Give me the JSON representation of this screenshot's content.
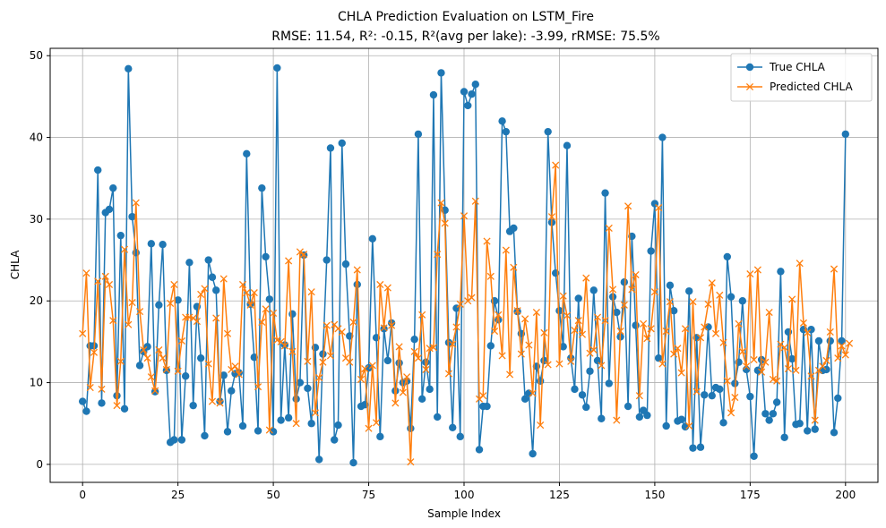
{
  "chart_data": {
    "type": "line",
    "title_line1": "CHLA Prediction Evaluation on LSTM_Fire",
    "title_line2": "RMSE: 11.54, R²: -0.15, R²(avg per lake): -3.99, rRMSE: 75.5%",
    "xlabel": "Sample Index",
    "ylabel": "CHLA",
    "xlim": [
      -8.5,
      208.5
    ],
    "ylim": [
      -2.2,
      50.9
    ],
    "xticks": [
      0,
      25,
      50,
      75,
      100,
      125,
      150,
      175,
      200
    ],
    "yticks": [
      0,
      10,
      20,
      30,
      40,
      50
    ],
    "grid": true,
    "legend_position": "top-right",
    "series": [
      {
        "name": "True CHLA",
        "color": "#1f77b4",
        "marker": "circle",
        "values": [
          7.7,
          6.5,
          14.5,
          14.5,
          36.0,
          7.5,
          30.8,
          31.2,
          33.8,
          8.4,
          28.0,
          6.8,
          48.4,
          30.3,
          25.9,
          12.1,
          13.8,
          14.4,
          27.0,
          8.9,
          19.5,
          26.9,
          11.5,
          2.7,
          3.0,
          20.1,
          3.0,
          10.8,
          24.7,
          7.2,
          19.3,
          13.0,
          3.5,
          25.0,
          22.9,
          21.3,
          7.7,
          10.9,
          4.0,
          9.0,
          11.1,
          11.2,
          4.7,
          38.0,
          19.6,
          13.1,
          4.1,
          33.8,
          25.4,
          20.2,
          4.0,
          48.5,
          5.4,
          14.6,
          5.7,
          18.4,
          8.0,
          10.0,
          25.6,
          9.3,
          5.0,
          14.3,
          0.6,
          13.5,
          25.0,
          38.7,
          3.0,
          4.8,
          39.3,
          24.5,
          15.7,
          0.2,
          22.0,
          7.1,
          7.3,
          11.8,
          27.6,
          15.5,
          3.4,
          16.6,
          12.7,
          17.3,
          9.0,
          12.4,
          10.0,
          10.2,
          4.4,
          15.3,
          40.4,
          8.0,
          12.5,
          9.2,
          45.2,
          5.8,
          47.9,
          31.1,
          14.9,
          4.5,
          19.1,
          3.4,
          45.6,
          43.9,
          45.3,
          46.5,
          1.8,
          7.1,
          7.1,
          14.5,
          20.0,
          17.7,
          42.0,
          40.7,
          28.5,
          28.9,
          18.7,
          16.0,
          8.0,
          8.7,
          1.3,
          12.0,
          10.2,
          12.7,
          40.7,
          29.6,
          23.4,
          18.8,
          14.4,
          39.0,
          13.0,
          9.2,
          20.3,
          8.5,
          7.0,
          11.4,
          21.3,
          12.7,
          5.6,
          33.2,
          9.9,
          20.5,
          18.6,
          15.6,
          22.3,
          7.1,
          27.9,
          17.0,
          5.8,
          6.6,
          6.0,
          26.1,
          31.9,
          13.0,
          40.0,
          4.7,
          21.9,
          18.8,
          5.3,
          5.5,
          4.6,
          21.2,
          2.0,
          15.5,
          2.1,
          8.5,
          16.8,
          8.4,
          9.4,
          9.2,
          5.1,
          25.4,
          20.5,
          9.9,
          12.5,
          20.0,
          11.6,
          8.3,
          1.0,
          11.5,
          12.8,
          6.2,
          5.4,
          6.2,
          7.6,
          23.6,
          3.3,
          16.2,
          12.9,
          4.9,
          5.0,
          16.5,
          4.1,
          16.5,
          4.3,
          15.1,
          11.5,
          11.6,
          15.1,
          3.9,
          8.1,
          15.1,
          40.4
        ]
      },
      {
        "name": "Predicted CHLA",
        "color": "#ff7f0e",
        "marker": "x",
        "values": [
          16.0,
          23.4,
          9.4,
          13.7,
          22.4,
          9.2,
          23.0,
          22.0,
          17.6,
          7.2,
          12.6,
          26.3,
          17.1,
          19.8,
          32.0,
          18.7,
          14.0,
          13.0,
          10.7,
          9.0,
          14.0,
          13.0,
          11.6,
          19.7,
          22.0,
          11.4,
          15.1,
          18.0,
          18.0,
          17.9,
          17.5,
          20.8,
          21.5,
          12.3,
          7.7,
          17.9,
          7.5,
          22.7,
          16.0,
          11.6,
          12.0,
          11.0,
          22.0,
          21.0,
          19.5,
          21.0,
          9.5,
          17.4,
          19.0,
          4.2,
          18.5,
          15.2,
          15.0,
          14.5,
          24.9,
          13.8,
          5.0,
          26.0,
          25.7,
          12.6,
          21.1,
          6.3,
          10.6,
          12.5,
          17.0,
          13.3,
          17.1,
          16.6,
          16.2,
          13.0,
          12.5,
          17.4,
          23.8,
          10.4,
          11.7,
          4.4,
          12.1,
          5.1,
          22.0,
          16.7,
          21.6,
          17.0,
          7.5,
          14.4,
          8.8,
          10.7,
          0.3,
          13.8,
          13.0,
          18.3,
          11.6,
          14.2,
          14.3,
          25.7,
          32.0,
          29.5,
          11.1,
          14.7,
          16.8,
          19.6,
          30.4,
          20.0,
          20.4,
          32.2,
          8.0,
          8.4,
          27.3,
          23.0,
          16.3,
          18.3,
          13.3,
          26.2,
          11.0,
          24.1,
          18.8,
          13.5,
          17.8,
          14.6,
          8.7,
          18.6,
          4.8,
          16.1,
          12.2,
          30.3,
          36.6,
          12.3,
          20.6,
          18.2,
          12.6,
          16.4,
          17.6,
          15.9,
          22.8,
          13.6,
          14.0,
          18.0,
          12.1,
          17.6,
          28.9,
          21.4,
          5.4,
          16.3,
          19.5,
          31.6,
          21.4,
          23.2,
          8.4,
          17.2,
          15.4,
          16.6,
          21.1,
          31.4,
          12.3,
          16.3,
          19.9,
          13.5,
          14.2,
          11.2,
          16.6,
          4.7,
          19.9,
          8.9,
          15.5,
          16.8,
          19.6,
          22.2,
          16.0,
          20.7,
          14.9,
          10.2,
          6.3,
          8.2,
          17.2,
          13.8,
          12.0,
          23.3,
          12.8,
          23.8,
          11.3,
          12.5,
          18.6,
          10.4,
          10.2,
          14.7,
          14.3,
          11.7,
          20.2,
          11.5,
          24.6,
          17.3,
          16.1,
          10.8,
          5.4,
          11.5,
          12.0,
          12.7,
          16.2,
          23.9,
          13.0,
          14.5,
          13.4,
          14.8
        ]
      }
    ]
  }
}
